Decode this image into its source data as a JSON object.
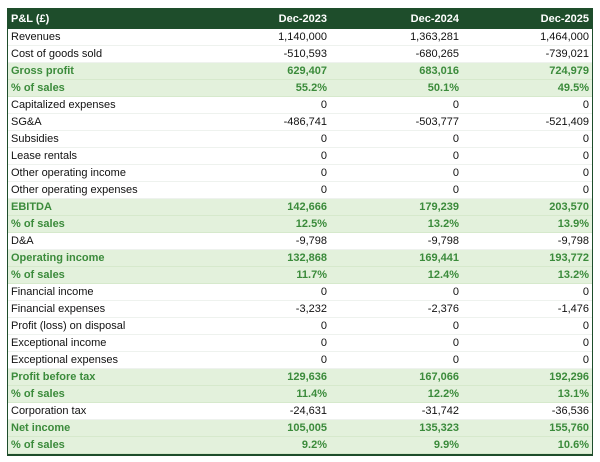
{
  "table": {
    "header": [
      "P&L (£)",
      "Dec-2023",
      "Dec-2024",
      "Dec-2025"
    ],
    "rows": [
      {
        "cells": [
          "Revenues",
          "1,140,000",
          "1,363,281",
          "1,464,000"
        ],
        "emphasis": false
      },
      {
        "cells": [
          "Cost of goods sold",
          "-510,593",
          "-680,265",
          "-739,021"
        ],
        "emphasis": false
      },
      {
        "cells": [
          "Gross profit",
          "629,407",
          "683,016",
          "724,979"
        ],
        "emphasis": true
      },
      {
        "cells": [
          "% of sales",
          "55.2%",
          "50.1%",
          "49.5%"
        ],
        "emphasis": true
      },
      {
        "cells": [
          "Capitalized expenses",
          "0",
          "0",
          "0"
        ],
        "emphasis": false
      },
      {
        "cells": [
          "SG&A",
          "-486,741",
          "-503,777",
          "-521,409"
        ],
        "emphasis": false
      },
      {
        "cells": [
          "Subsidies",
          "0",
          "0",
          "0"
        ],
        "emphasis": false
      },
      {
        "cells": [
          "Lease rentals",
          "0",
          "0",
          "0"
        ],
        "emphasis": false
      },
      {
        "cells": [
          "Other operating income",
          "0",
          "0",
          "0"
        ],
        "emphasis": false
      },
      {
        "cells": [
          "Other operating expenses",
          "0",
          "0",
          "0"
        ],
        "emphasis": false
      },
      {
        "cells": [
          "EBITDA",
          "142,666",
          "179,239",
          "203,570"
        ],
        "emphasis": true
      },
      {
        "cells": [
          "% of sales",
          "12.5%",
          "13.2%",
          "13.9%"
        ],
        "emphasis": true
      },
      {
        "cells": [
          "D&A",
          "-9,798",
          "-9,798",
          "-9,798"
        ],
        "emphasis": false
      },
      {
        "cells": [
          "Operating income",
          "132,868",
          "169,441",
          "193,772"
        ],
        "emphasis": true
      },
      {
        "cells": [
          "% of sales",
          "11.7%",
          "12.4%",
          "13.2%"
        ],
        "emphasis": true
      },
      {
        "cells": [
          "Financial income",
          "0",
          "0",
          "0"
        ],
        "emphasis": false
      },
      {
        "cells": [
          "Financial expenses",
          "-3,232",
          "-2,376",
          "-1,476"
        ],
        "emphasis": false
      },
      {
        "cells": [
          "Profit (loss) on disposal",
          "0",
          "0",
          "0"
        ],
        "emphasis": false
      },
      {
        "cells": [
          "Exceptional income",
          "0",
          "0",
          "0"
        ],
        "emphasis": false
      },
      {
        "cells": [
          "Exceptional expenses",
          "0",
          "0",
          "0"
        ],
        "emphasis": false
      },
      {
        "cells": [
          "Profit before tax",
          "129,636",
          "167,066",
          "192,296"
        ],
        "emphasis": true
      },
      {
        "cells": [
          "% of sales",
          "11.4%",
          "12.2%",
          "13.1%"
        ],
        "emphasis": true
      },
      {
        "cells": [
          "Corporation tax",
          "-24,631",
          "-31,742",
          "-36,536"
        ],
        "emphasis": false
      },
      {
        "cells": [
          "Net income",
          "105,005",
          "135,323",
          "155,760"
        ],
        "emphasis": true
      },
      {
        "cells": [
          "% of sales",
          "9.2%",
          "9.9%",
          "10.6%"
        ],
        "emphasis": true
      }
    ]
  }
}
